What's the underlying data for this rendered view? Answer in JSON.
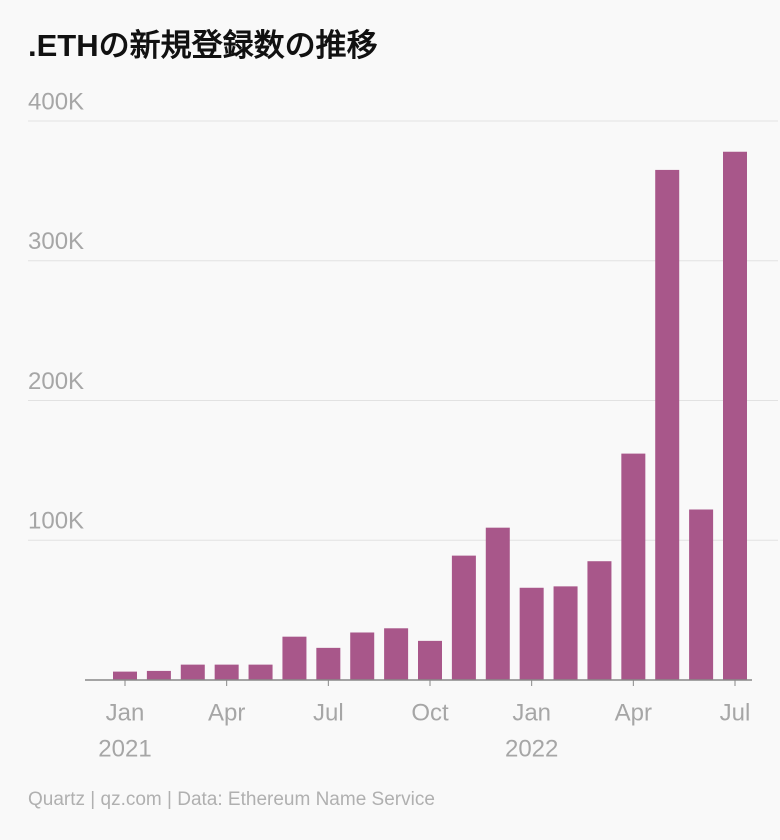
{
  "chart_data": {
    "type": "bar",
    "title": ".ETHの新規登録数の推移",
    "source": "Quartz | qz.com | Data: Ethereum Name Service",
    "categories": [
      "Jan",
      null,
      null,
      "Apr",
      null,
      null,
      "Jul",
      null,
      null,
      "Oct",
      null,
      null,
      "Jan",
      null,
      null,
      "Apr",
      null,
      null,
      "Jul"
    ],
    "year_labels": [
      {
        "category": 0,
        "label": "2021"
      },
      {
        "category": 12,
        "label": "2022"
      }
    ],
    "values": [
      6000,
      6500,
      11000,
      11000,
      11000,
      31000,
      23000,
      34000,
      37000,
      28000,
      89000,
      109000,
      66000,
      67000,
      85000,
      162000,
      365000,
      122000,
      378000
    ],
    "color": "#a8578a",
    "ylim": [
      0,
      400000
    ],
    "yticks": [
      {
        "value": 100000,
        "label": "100K"
      },
      {
        "value": 200000,
        "label": "200K"
      },
      {
        "value": 300000,
        "label": "300K"
      },
      {
        "value": 400000,
        "label": "400K"
      }
    ],
    "grid": true
  }
}
